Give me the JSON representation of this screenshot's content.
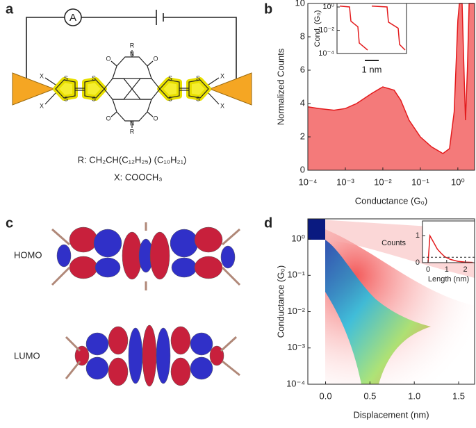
{
  "panels": {
    "a": {
      "letter": "a",
      "ammeter": "A",
      "r_label": "R: CH₂CH(C₁₂H₂₅) (C₁₀H₂₁)",
      "x_label": "X: COOCH₃",
      "atoms": {
        "sulfur": "S",
        "oxygen": "O",
        "nitrogen": "N",
        "r_group": "R",
        "x_group": "X"
      }
    },
    "b": {
      "letter": "b"
    },
    "c": {
      "letter": "c",
      "homo": "HOMO",
      "lumo": "LUMO"
    },
    "d": {
      "letter": "d"
    }
  },
  "chart_data": [
    {
      "type": "area",
      "color": "#e31a1c",
      "fill": "#f47a7a",
      "xlog": true,
      "x": [
        0.0001,
        0.0002,
        0.0005,
        0.001,
        0.002,
        0.005,
        0.01,
        0.02,
        0.03,
        0.05,
        0.1,
        0.2,
        0.4,
        0.6,
        0.8,
        1.0,
        1.1,
        1.3,
        1.5,
        1.6,
        1.8,
        2.0,
        2.8
      ],
      "values": [
        3.8,
        3.7,
        3.6,
        3.7,
        4.0,
        4.6,
        5.0,
        4.8,
        4.2,
        3.0,
        2.0,
        1.4,
        1.0,
        1.3,
        3.5,
        9,
        10,
        10,
        5,
        3,
        6,
        10,
        10
      ],
      "xlim": [
        0.0001,
        2.8
      ],
      "ylim": [
        0,
        10
      ],
      "xticks": [
        {
          "value": 0.0001,
          "label": "10⁻⁴"
        },
        {
          "value": 0.001,
          "label": "10⁻³"
        },
        {
          "value": 0.01,
          "label": "10⁻²"
        },
        {
          "value": 0.1,
          "label": "10⁻¹"
        },
        {
          "value": 1,
          "label": "10⁰"
        }
      ],
      "yticks": [
        0,
        2,
        4,
        6,
        8,
        10
      ],
      "xlabel": "Conductance (G₀)",
      "ylabel": "Normalized Counts"
    },
    {
      "type": "line",
      "ylog": true,
      "ylabel": "Cond. (G₀)",
      "scale_bar": "1 nm",
      "xlim": [
        0,
        5
      ],
      "ylim": [
        0.0001,
        2
      ],
      "yticks": [
        {
          "value": 1,
          "label": "10⁰"
        },
        {
          "value": 0.01,
          "label": "10⁻²"
        },
        {
          "value": 0.0001,
          "label": "10⁻⁴"
        }
      ],
      "series": [
        {
          "color": "#e31a1c",
          "x": [
            0.2,
            0.9,
            1.0,
            1.5,
            1.6,
            2.2
          ],
          "values": [
            1.2,
            1.0,
            0.06,
            0.02,
            0.0008,
            0.0002
          ]
        },
        {
          "color": "#e31a1c",
          "x": [
            2.5,
            3.6,
            3.7,
            4.4,
            4.5,
            4.9
          ],
          "values": [
            1.2,
            1.0,
            0.05,
            0.015,
            0.0006,
            0.0002
          ]
        }
      ]
    },
    {
      "type": "heatmap",
      "xlim": [
        -0.2,
        1.68
      ],
      "ylim": [
        0.0001,
        3.6
      ],
      "ylog": true,
      "xticks": [
        {
          "value": 0,
          "label": "0.0"
        },
        {
          "value": 0.5,
          "label": "0.5"
        },
        {
          "value": 1,
          "label": "1.0"
        },
        {
          "value": 1.5,
          "label": "1.5"
        }
      ],
      "yticks": [
        {
          "value": 1,
          "label": "10⁰"
        },
        {
          "value": 0.1,
          "label": "10⁻¹"
        },
        {
          "value": 0.01,
          "label": "10⁻²"
        },
        {
          "value": 0.001,
          "label": "10⁻³"
        },
        {
          "value": 0.0001,
          "label": "10⁻⁴"
        }
      ],
      "xlabel": "Displacement (nm)",
      "ylabel": "Conductance (G₀)"
    },
    {
      "type": "line",
      "color": "#e31a1c",
      "xlim": [
        -0.3,
        2.5
      ],
      "ylim": [
        0,
        1.55
      ],
      "threshold": 0.2,
      "x": [
        0,
        0.1,
        0.3,
        0.5,
        0.7,
        0.9,
        1.2,
        1.6,
        2.0,
        2.4
      ],
      "values": [
        0,
        1.0,
        0.75,
        0.5,
        0.35,
        0.22,
        0.12,
        0.05,
        0.02,
        0.01
      ],
      "xticks": [
        0,
        1,
        2
      ],
      "yticks": [
        0,
        1
      ],
      "xlabel": "Length (nm)",
      "ylabel": "Counts"
    }
  ]
}
